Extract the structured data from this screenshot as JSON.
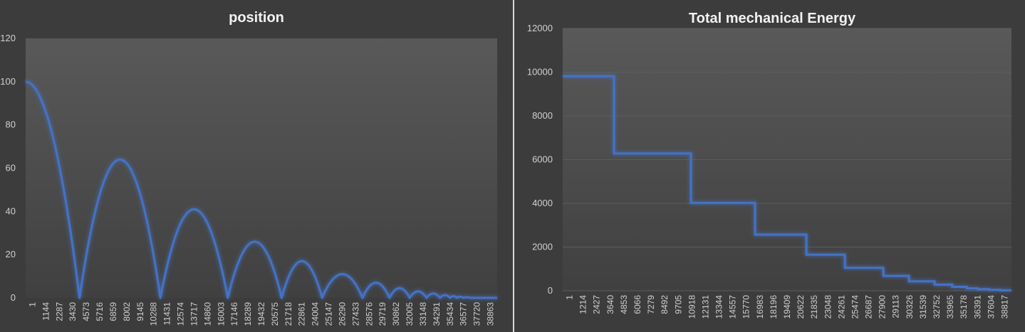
{
  "chart_data": [
    {
      "type": "line",
      "title": "position",
      "ylim": [
        0,
        120
      ],
      "yticks": [
        "0",
        "20",
        "40",
        "60",
        "80",
        "100",
        "120"
      ],
      "xticks": [
        "1",
        "1144",
        "2287",
        "3430",
        "4573",
        "5716",
        "6859",
        "8002",
        "9145",
        "10288",
        "11431",
        "12574",
        "13717",
        "14860",
        "16003",
        "17146",
        "18289",
        "19432",
        "20575",
        "21718",
        "22861",
        "24004",
        "25147",
        "26290",
        "27433",
        "28576",
        "29719",
        "30862",
        "32005",
        "33148",
        "34291",
        "35434",
        "36577",
        "37720",
        "38863"
      ],
      "xlim": [
        1,
        40000
      ],
      "grid": false,
      "series_color": "#4472c4",
      "series": [
        {
          "x": [
            1,
            4573,
            8002,
            11431,
            14860,
            17146,
            19432,
            21718,
            24004,
            25147,
            26861,
            28576,
            29719,
            30862,
            31719,
            32577,
            33291,
            34005,
            34577,
            35148,
            35577,
            36005,
            36291,
            36577,
            36863,
            37149,
            37435,
            37720,
            40000
          ],
          "y": [
            100,
            0,
            64,
            0,
            41,
            0,
            26,
            0,
            17,
            0,
            11,
            0,
            7,
            0,
            4.5,
            0,
            3,
            0,
            2,
            0,
            1.3,
            0,
            0.8,
            0,
            0.5,
            0,
            0.3,
            0,
            0
          ]
        }
      ]
    },
    {
      "type": "line",
      "title": "Total mechanical Energy",
      "ylim": [
        0,
        12000
      ],
      "yticks": [
        "0",
        "2000",
        "4000",
        "6000",
        "8000",
        "10000",
        "12000"
      ],
      "xticks": [
        "1",
        "1214",
        "2427",
        "3640",
        "4853",
        "6066",
        "7279",
        "8492",
        "9705",
        "10918",
        "12131",
        "13344",
        "14557",
        "15770",
        "16983",
        "18196",
        "19409",
        "20622",
        "21835",
        "23048",
        "24261",
        "25474",
        "26687",
        "27900",
        "29113",
        "30326",
        "31539",
        "32752",
        "33965",
        "35178",
        "36391",
        "37604",
        "38817"
      ],
      "xlim": [
        1,
        40000
      ],
      "grid": true,
      "series_color": "#4472c4",
      "series": [
        {
          "step_x": [
            1,
            4574,
            11431,
            17146,
            21718,
            25147,
            28576,
            30862,
            33148,
            34720,
            36005,
            37006,
            38006,
            39006,
            40000
          ],
          "step_y": [
            9810,
            6280,
            4020,
            2570,
            1650,
            1050,
            680,
            430,
            280,
            180,
            110,
            70,
            40,
            20
          ]
        }
      ]
    }
  ]
}
